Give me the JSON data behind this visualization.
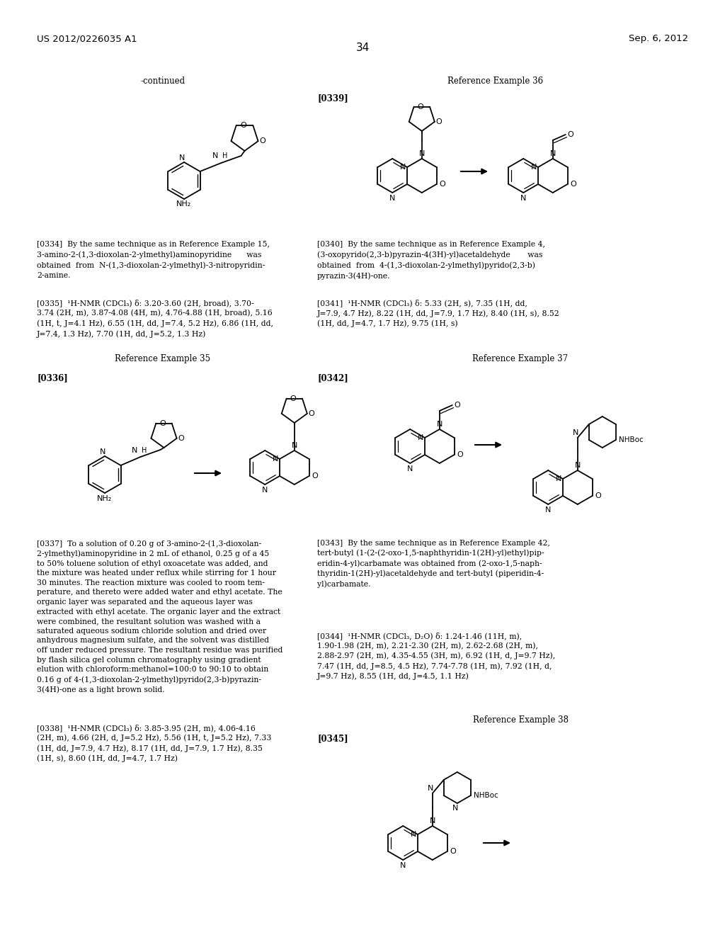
{
  "page_number": "34",
  "left_header": "US 2012/0226035 A1",
  "right_header": "Sep. 6, 2012",
  "background_color": "#ffffff",
  "text_color": "#000000",
  "continued_text": "-continued",
  "ref_ex_36": "Reference Example 36",
  "ref_ex_35": "Reference Example 35",
  "ref_ex_37": "Reference Example 37",
  "ref_ex_38": "Reference Example 38"
}
